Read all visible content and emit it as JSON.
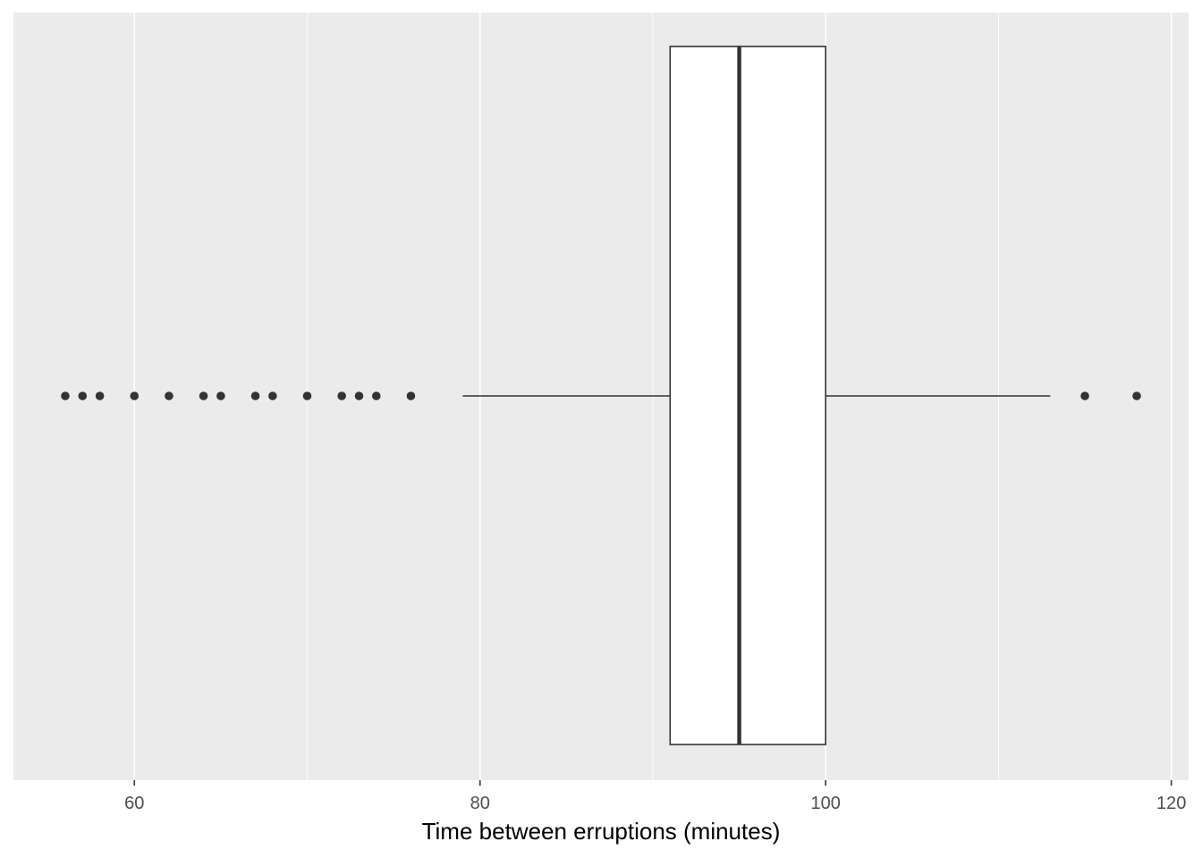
{
  "chart_data": {
    "type": "boxplot",
    "orientation": "horizontal",
    "xlabel": "Time between erruptions (minutes)",
    "ylabel": "",
    "xlim": [
      53,
      121
    ],
    "x_ticks": [
      60,
      80,
      100,
      120
    ],
    "x_tick_labels": [
      "60",
      "80",
      "100",
      "120"
    ],
    "minor_x_ticks": [
      70,
      90,
      110
    ],
    "grid": true,
    "legend": "none",
    "box": {
      "q1": 91,
      "median": 95,
      "q3": 100,
      "whisker_low": 79,
      "whisker_high": 113
    },
    "outliers": [
      56,
      57,
      58,
      60,
      62,
      64,
      65,
      67,
      68,
      70,
      72,
      73,
      74,
      76,
      115,
      118
    ],
    "colors": {
      "panel_background": "#ebebeb",
      "grid_line": "#ffffff",
      "box_fill": "#ffffff",
      "box_stroke": "#333333",
      "point": "#333333"
    }
  }
}
